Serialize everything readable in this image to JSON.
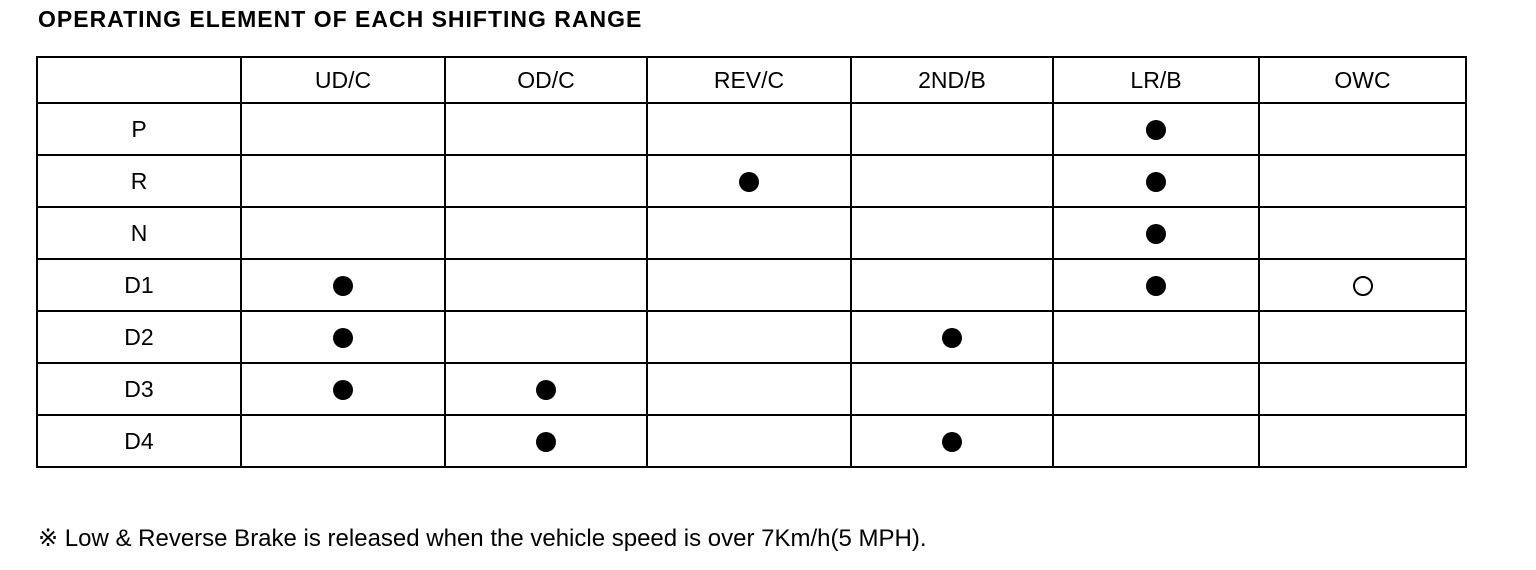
{
  "title": "OPERATING ELEMENT OF EACH SHIFTING RANGE",
  "table": {
    "corner_symbol": "※",
    "columns": [
      "UD/C",
      "OD/C",
      "REV/C",
      "2ND/B",
      "LR/B",
      "OWC"
    ],
    "rows": [
      {
        "range": "P",
        "cells": [
          "",
          "",
          "",
          "",
          "filled",
          ""
        ]
      },
      {
        "range": "R",
        "cells": [
          "",
          "",
          "filled",
          "",
          "filled",
          ""
        ]
      },
      {
        "range": "N",
        "cells": [
          "",
          "",
          "",
          "",
          "filled",
          ""
        ]
      },
      {
        "range": "D1",
        "cells": [
          "filled",
          "",
          "",
          "",
          "filled",
          "open"
        ]
      },
      {
        "range": "D2",
        "cells": [
          "filled",
          "",
          "",
          "filled",
          "",
          ""
        ]
      },
      {
        "range": "D3",
        "cells": [
          "filled",
          "filled",
          "",
          "",
          "",
          ""
        ]
      },
      {
        "range": "D4",
        "cells": [
          "",
          "filled",
          "",
          "filled",
          "",
          ""
        ]
      }
    ]
  },
  "footnote": "※ Low  &  Reverse Brake is released when the vehicle speed is over 7Km/h(5 MPH)."
}
